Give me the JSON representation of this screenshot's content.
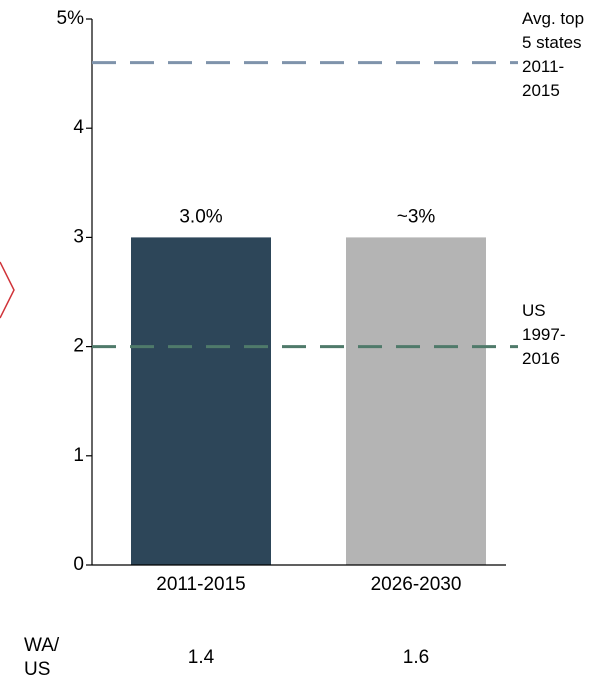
{
  "chart_data": {
    "type": "bar",
    "categories": [
      "2011-2015",
      "2026-2030"
    ],
    "values": [
      3.0,
      3
    ],
    "value_labels": [
      "3.0%",
      "~3%"
    ],
    "colors": [
      "#2d4659",
      "#b4b4b4"
    ],
    "ylim": [
      0,
      5
    ],
    "yticks": [
      0,
      1,
      2,
      3,
      4,
      {
        "value": 5,
        "label": "5%"
      }
    ],
    "reference_lines": [
      {
        "value": 4.6,
        "color": "#7f93ab",
        "label": [
          "Avg. top",
          "5 states",
          "2011-",
          "2015"
        ]
      },
      {
        "value": 2.0,
        "color": "#4f7a6a",
        "label": [
          "US",
          "1997-",
          "2016"
        ]
      }
    ],
    "ratio_row": {
      "label": [
        "WA/",
        "US"
      ],
      "values": [
        1.4,
        1.6
      ]
    }
  }
}
